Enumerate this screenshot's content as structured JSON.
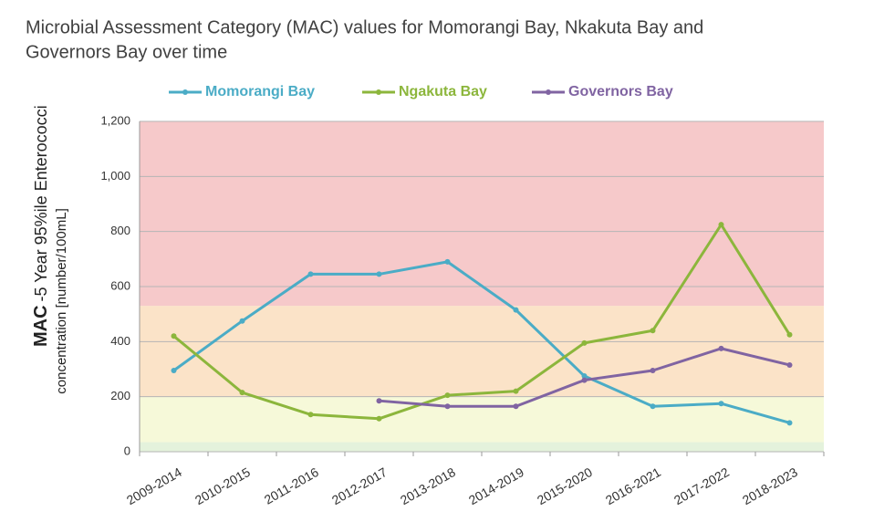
{
  "chart_data": {
    "type": "line",
    "title": [
      "Microbial Assessment Category (MAC) values for Momorangi Bay, Nkakuta Bay and",
      "Governors Bay over time"
    ],
    "y_label": {
      "bold": "MAC",
      "line1": "-5 Year 95%ile Enterococci",
      "line2": "concentration [number/100mL]"
    },
    "categories": [
      "2009-2014",
      "2010-2015",
      "2011-2016",
      "2012-2017",
      "2013-2018",
      "2014-2019",
      "2015-2020",
      "2016-2021",
      "2017-2022",
      "2018-2023"
    ],
    "series": [
      {
        "name": "Momorangi Bay",
        "color": "#4bacc6",
        "values": [
          295,
          475,
          645,
          645,
          690,
          515,
          275,
          165,
          175,
          105
        ]
      },
      {
        "name": "Ngakuta Bay",
        "color": "#8cb63c",
        "values": [
          420,
          215,
          135,
          120,
          205,
          220,
          395,
          440,
          825,
          425
        ]
      },
      {
        "name": "Governors Bay",
        "color": "#8064a2",
        "values": [
          null,
          null,
          null,
          185,
          165,
          165,
          260,
          295,
          375,
          315
        ]
      }
    ],
    "bands": [
      {
        "from": 0,
        "to": 35,
        "color": "#e4f2dc"
      },
      {
        "from": 35,
        "to": 200,
        "color": "#f6f9d9"
      },
      {
        "from": 200,
        "to": 530,
        "color": "#fbe3c8"
      },
      {
        "from": 530,
        "to": 1200,
        "color": "#f6c9ca"
      }
    ],
    "ylim": [
      0,
      1200
    ],
    "yticks": [
      0,
      200,
      400,
      600,
      800,
      {
        "value": 1000,
        "label": "1,000"
      },
      {
        "value": 1200,
        "label": "1,200"
      }
    ],
    "grid": true,
    "legend": "top"
  }
}
